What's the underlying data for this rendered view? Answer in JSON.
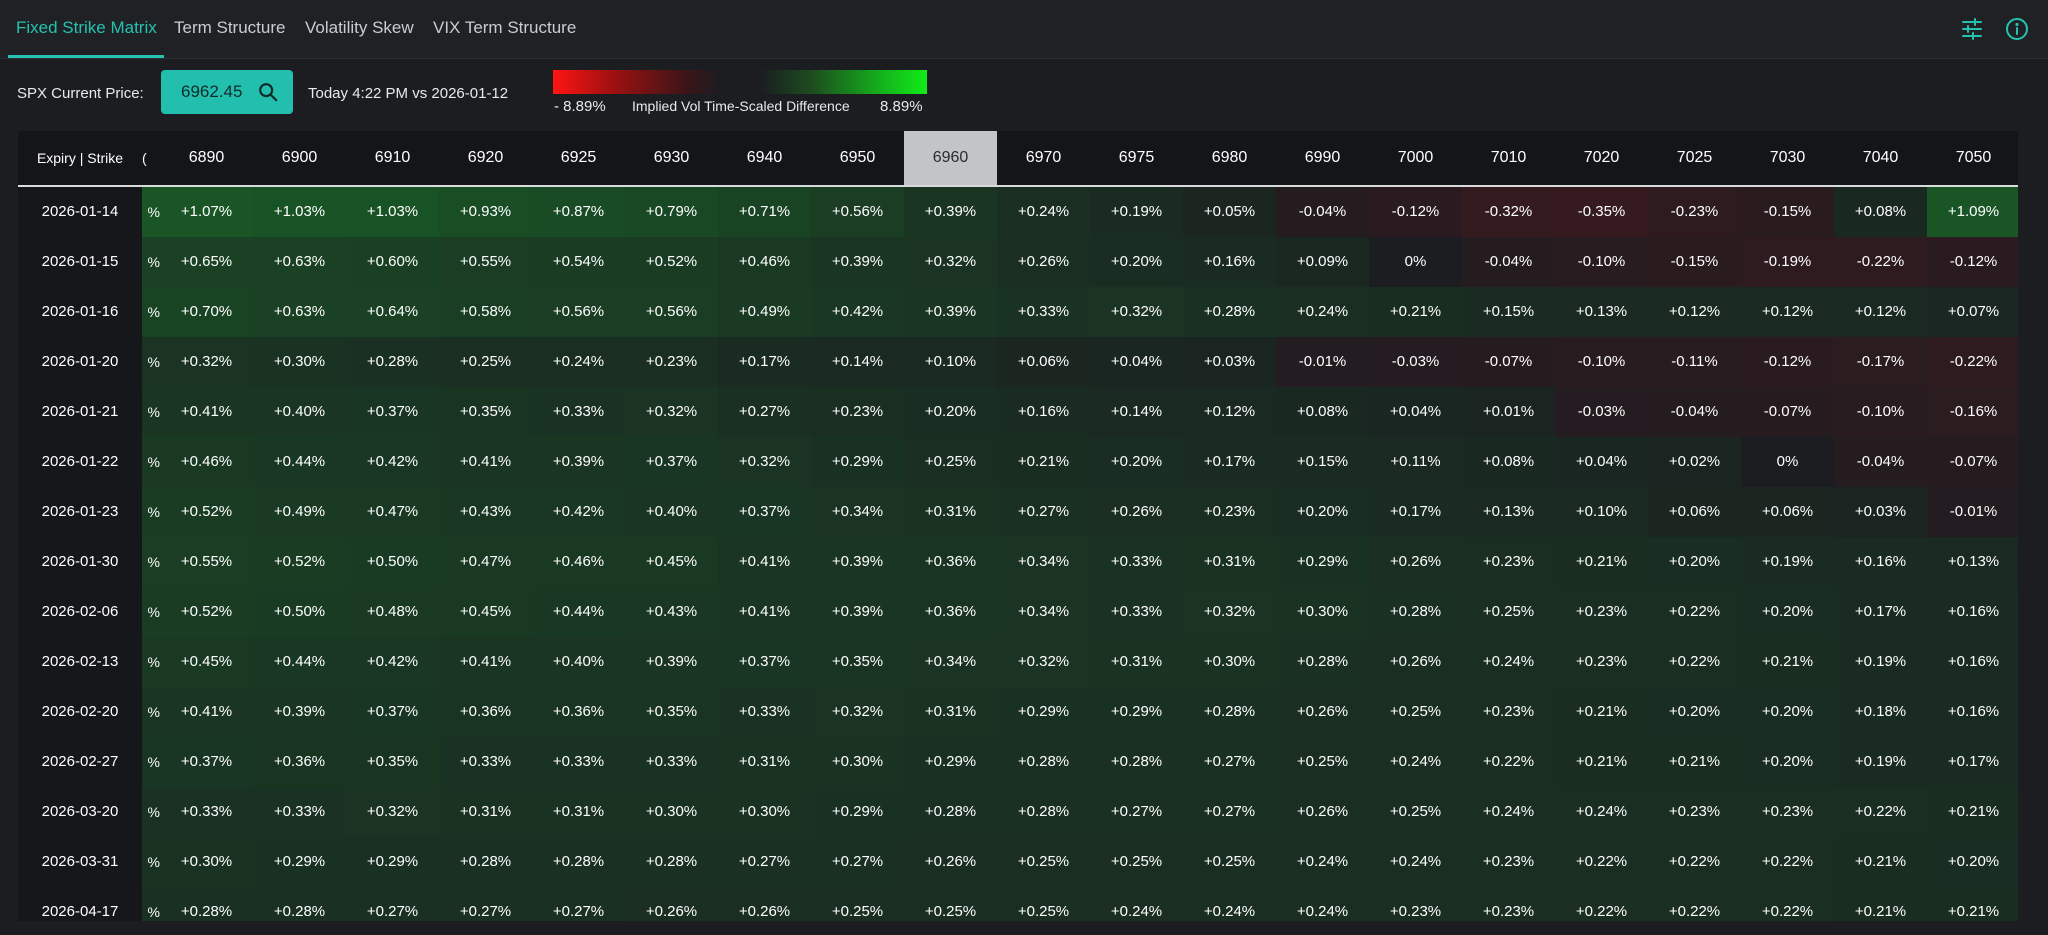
{
  "tabs": [
    {
      "label": "Fixed Strike Matrix",
      "active": true
    },
    {
      "label": "Term Structure",
      "active": false
    },
    {
      "label": "Volatility Skew",
      "active": false
    },
    {
      "label": "VIX Term Structure",
      "active": false
    }
  ],
  "header_icons": [
    "sliders-icon",
    "info-icon"
  ],
  "controls": {
    "spx_label": "SPX Current Price:",
    "spx_price": "6962.45",
    "compare_text": "Today 4:22 PM vs 2026-01-12",
    "scale_min": "- 8.89%",
    "scale_title": "Implied Vol Time-Scaled Difference",
    "scale_max": "8.89%"
  },
  "colors": {
    "accent": "#25c2b0",
    "negative": "#ff1414",
    "positive": "#12ec18",
    "atm_header": "#c2c4c6"
  },
  "matrix": {
    "corner_label": "Expiry | Strike",
    "partial_col_char": "%",
    "atm_strike": "6960",
    "strikes": [
      "6890",
      "6900",
      "6910",
      "6920",
      "6925",
      "6930",
      "6940",
      "6950",
      "6960",
      "6970",
      "6975",
      "6980",
      "6990",
      "7000",
      "7010",
      "7020",
      "7025",
      "7030",
      "7040",
      "7050"
    ],
    "rows": [
      {
        "expiry": "2026-01-14",
        "values": [
          "+1.07%",
          "+1.03%",
          "+1.03%",
          "+0.93%",
          "+0.87%",
          "+0.79%",
          "+0.71%",
          "+0.56%",
          "+0.39%",
          "+0.24%",
          "+0.19%",
          "+0.05%",
          "-0.04%",
          "-0.12%",
          "-0.32%",
          "-0.35%",
          "-0.23%",
          "-0.15%",
          "+0.08%",
          "+1.09%"
        ]
      },
      {
        "expiry": "2026-01-15",
        "values": [
          "+0.65%",
          "+0.63%",
          "+0.60%",
          "+0.55%",
          "+0.54%",
          "+0.52%",
          "+0.46%",
          "+0.39%",
          "+0.32%",
          "+0.26%",
          "+0.20%",
          "+0.16%",
          "+0.09%",
          "0%",
          "-0.04%",
          "-0.10%",
          "-0.15%",
          "-0.19%",
          "-0.22%",
          "-0.12%"
        ]
      },
      {
        "expiry": "2026-01-16",
        "values": [
          "+0.70%",
          "+0.63%",
          "+0.64%",
          "+0.58%",
          "+0.56%",
          "+0.56%",
          "+0.49%",
          "+0.42%",
          "+0.39%",
          "+0.33%",
          "+0.32%",
          "+0.28%",
          "+0.24%",
          "+0.21%",
          "+0.15%",
          "+0.13%",
          "+0.12%",
          "+0.12%",
          "+0.12%",
          "+0.07%"
        ]
      },
      {
        "expiry": "2026-01-20",
        "values": [
          "+0.32%",
          "+0.30%",
          "+0.28%",
          "+0.25%",
          "+0.24%",
          "+0.23%",
          "+0.17%",
          "+0.14%",
          "+0.10%",
          "+0.06%",
          "+0.04%",
          "+0.03%",
          "-0.01%",
          "-0.03%",
          "-0.07%",
          "-0.10%",
          "-0.11%",
          "-0.12%",
          "-0.17%",
          "-0.22%"
        ]
      },
      {
        "expiry": "2026-01-21",
        "values": [
          "+0.41%",
          "+0.40%",
          "+0.37%",
          "+0.35%",
          "+0.33%",
          "+0.32%",
          "+0.27%",
          "+0.23%",
          "+0.20%",
          "+0.16%",
          "+0.14%",
          "+0.12%",
          "+0.08%",
          "+0.04%",
          "+0.01%",
          "-0.03%",
          "-0.04%",
          "-0.07%",
          "-0.10%",
          "-0.16%"
        ]
      },
      {
        "expiry": "2026-01-22",
        "values": [
          "+0.46%",
          "+0.44%",
          "+0.42%",
          "+0.41%",
          "+0.39%",
          "+0.37%",
          "+0.32%",
          "+0.29%",
          "+0.25%",
          "+0.21%",
          "+0.20%",
          "+0.17%",
          "+0.15%",
          "+0.11%",
          "+0.08%",
          "+0.04%",
          "+0.02%",
          "0%",
          "-0.04%",
          "-0.07%"
        ]
      },
      {
        "expiry": "2026-01-23",
        "values": [
          "+0.52%",
          "+0.49%",
          "+0.47%",
          "+0.43%",
          "+0.42%",
          "+0.40%",
          "+0.37%",
          "+0.34%",
          "+0.31%",
          "+0.27%",
          "+0.26%",
          "+0.23%",
          "+0.20%",
          "+0.17%",
          "+0.13%",
          "+0.10%",
          "+0.06%",
          "+0.06%",
          "+0.03%",
          "-0.01%"
        ]
      },
      {
        "expiry": "2026-01-30",
        "values": [
          "+0.55%",
          "+0.52%",
          "+0.50%",
          "+0.47%",
          "+0.46%",
          "+0.45%",
          "+0.41%",
          "+0.39%",
          "+0.36%",
          "+0.34%",
          "+0.33%",
          "+0.31%",
          "+0.29%",
          "+0.26%",
          "+0.23%",
          "+0.21%",
          "+0.20%",
          "+0.19%",
          "+0.16%",
          "+0.13%"
        ]
      },
      {
        "expiry": "2026-02-06",
        "values": [
          "+0.52%",
          "+0.50%",
          "+0.48%",
          "+0.45%",
          "+0.44%",
          "+0.43%",
          "+0.41%",
          "+0.39%",
          "+0.36%",
          "+0.34%",
          "+0.33%",
          "+0.32%",
          "+0.30%",
          "+0.28%",
          "+0.25%",
          "+0.23%",
          "+0.22%",
          "+0.20%",
          "+0.17%",
          "+0.16%"
        ]
      },
      {
        "expiry": "2026-02-13",
        "values": [
          "+0.45%",
          "+0.44%",
          "+0.42%",
          "+0.41%",
          "+0.40%",
          "+0.39%",
          "+0.37%",
          "+0.35%",
          "+0.34%",
          "+0.32%",
          "+0.31%",
          "+0.30%",
          "+0.28%",
          "+0.26%",
          "+0.24%",
          "+0.23%",
          "+0.22%",
          "+0.21%",
          "+0.19%",
          "+0.16%"
        ]
      },
      {
        "expiry": "2026-02-20",
        "values": [
          "+0.41%",
          "+0.39%",
          "+0.37%",
          "+0.36%",
          "+0.36%",
          "+0.35%",
          "+0.33%",
          "+0.32%",
          "+0.31%",
          "+0.29%",
          "+0.29%",
          "+0.28%",
          "+0.26%",
          "+0.25%",
          "+0.23%",
          "+0.21%",
          "+0.20%",
          "+0.20%",
          "+0.18%",
          "+0.16%"
        ]
      },
      {
        "expiry": "2026-02-27",
        "values": [
          "+0.37%",
          "+0.36%",
          "+0.35%",
          "+0.33%",
          "+0.33%",
          "+0.33%",
          "+0.31%",
          "+0.30%",
          "+0.29%",
          "+0.28%",
          "+0.28%",
          "+0.27%",
          "+0.25%",
          "+0.24%",
          "+0.22%",
          "+0.21%",
          "+0.21%",
          "+0.20%",
          "+0.19%",
          "+0.17%"
        ]
      },
      {
        "expiry": "2026-03-20",
        "values": [
          "+0.33%",
          "+0.33%",
          "+0.32%",
          "+0.31%",
          "+0.31%",
          "+0.30%",
          "+0.30%",
          "+0.29%",
          "+0.28%",
          "+0.28%",
          "+0.27%",
          "+0.27%",
          "+0.26%",
          "+0.25%",
          "+0.24%",
          "+0.24%",
          "+0.23%",
          "+0.23%",
          "+0.22%",
          "+0.21%"
        ]
      },
      {
        "expiry": "2026-03-31",
        "values": [
          "+0.30%",
          "+0.29%",
          "+0.29%",
          "+0.28%",
          "+0.28%",
          "+0.28%",
          "+0.27%",
          "+0.27%",
          "+0.26%",
          "+0.25%",
          "+0.25%",
          "+0.25%",
          "+0.24%",
          "+0.24%",
          "+0.23%",
          "+0.22%",
          "+0.22%",
          "+0.22%",
          "+0.21%",
          "+0.20%"
        ]
      },
      {
        "expiry": "2026-04-17",
        "values": [
          "+0.28%",
          "+0.28%",
          "+0.27%",
          "+0.27%",
          "+0.27%",
          "+0.26%",
          "+0.26%",
          "+0.25%",
          "+0.25%",
          "+0.25%",
          "+0.24%",
          "+0.24%",
          "+0.24%",
          "+0.23%",
          "+0.23%",
          "+0.22%",
          "+0.22%",
          "+0.22%",
          "+0.21%",
          "+0.21%"
        ]
      }
    ]
  }
}
